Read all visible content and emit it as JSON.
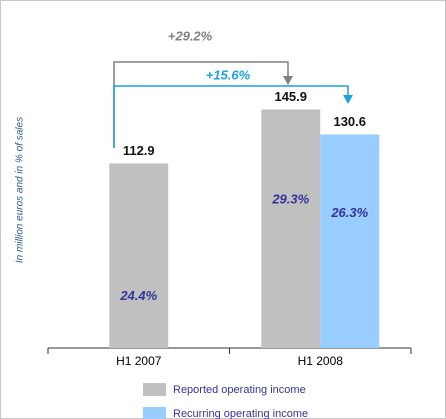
{
  "chart_data": {
    "type": "bar",
    "y_axis_label": "In million euros and in % of sales",
    "categories": [
      "H1 2007",
      "H1 2008"
    ],
    "series": [
      {
        "name": "Reported operating income",
        "color": "#c0c0c0",
        "values": [
          112.9,
          145.9
        ],
        "margins": [
          {
            "value": 24.4,
            "label": "24.4%"
          },
          {
            "value": 29.3,
            "label": "29.3%"
          }
        ]
      },
      {
        "name": "Recurring operating income",
        "color": "#99ccff",
        "values": [
          null,
          130.6
        ],
        "margins": [
          null,
          {
            "value": 26.3,
            "label": "26.3%"
          }
        ]
      }
    ],
    "growth_reported": {
      "value": 29.2,
      "label": "+29.2%"
    },
    "growth_recurring": {
      "value": 15.6,
      "label": "+15.6%"
    },
    "ylim": [
      0,
      200
    ]
  }
}
